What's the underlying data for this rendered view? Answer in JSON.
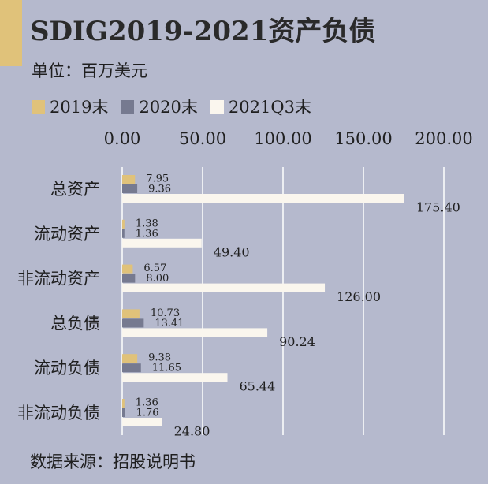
{
  "header": {
    "title": "SDIG2019-2021资产负债",
    "unit": "单位：百万美元"
  },
  "footer": {
    "source": "数据来源：招股说明书"
  },
  "colors": {
    "background": "#b5b9cd",
    "accent": "#e0c27a",
    "grid": "#ffffff"
  },
  "chart_data": {
    "type": "bar",
    "orientation": "horizontal",
    "categories": [
      "总资产",
      "流动资产",
      "非流动资产",
      "总负债",
      "流动负债",
      "非流动负债"
    ],
    "series": [
      {
        "name": "2019末",
        "color": "#e0c27a",
        "values": [
          7.95,
          1.38,
          6.57,
          10.73,
          9.38,
          1.36
        ],
        "labels": [
          "7.95",
          "1.38",
          "6.57",
          "10.73",
          "9.38",
          "1.36"
        ]
      },
      {
        "name": "2020末",
        "color": "#767a90",
        "values": [
          9.36,
          1.36,
          8.0,
          13.41,
          11.65,
          1.76
        ],
        "labels": [
          "9.36",
          "1.36",
          "8.00",
          "13.41",
          "11.65",
          "1.76"
        ]
      },
      {
        "name": "2021Q3末",
        "color": "#faf6ee",
        "values": [
          175.4,
          49.4,
          126.0,
          90.24,
          65.44,
          24.8
        ],
        "labels": [
          "175.40",
          "49.40",
          "126.00",
          "90.24",
          "65.44",
          "24.80"
        ]
      }
    ],
    "xlim": [
      0,
      200
    ],
    "ticks": [
      0,
      50,
      100,
      150,
      200
    ],
    "tick_labels": [
      "0.00",
      "50.00",
      "100.00",
      "150.00",
      "200.00"
    ],
    "axis_position": "top",
    "grid": true,
    "legend_position": "top-left"
  }
}
